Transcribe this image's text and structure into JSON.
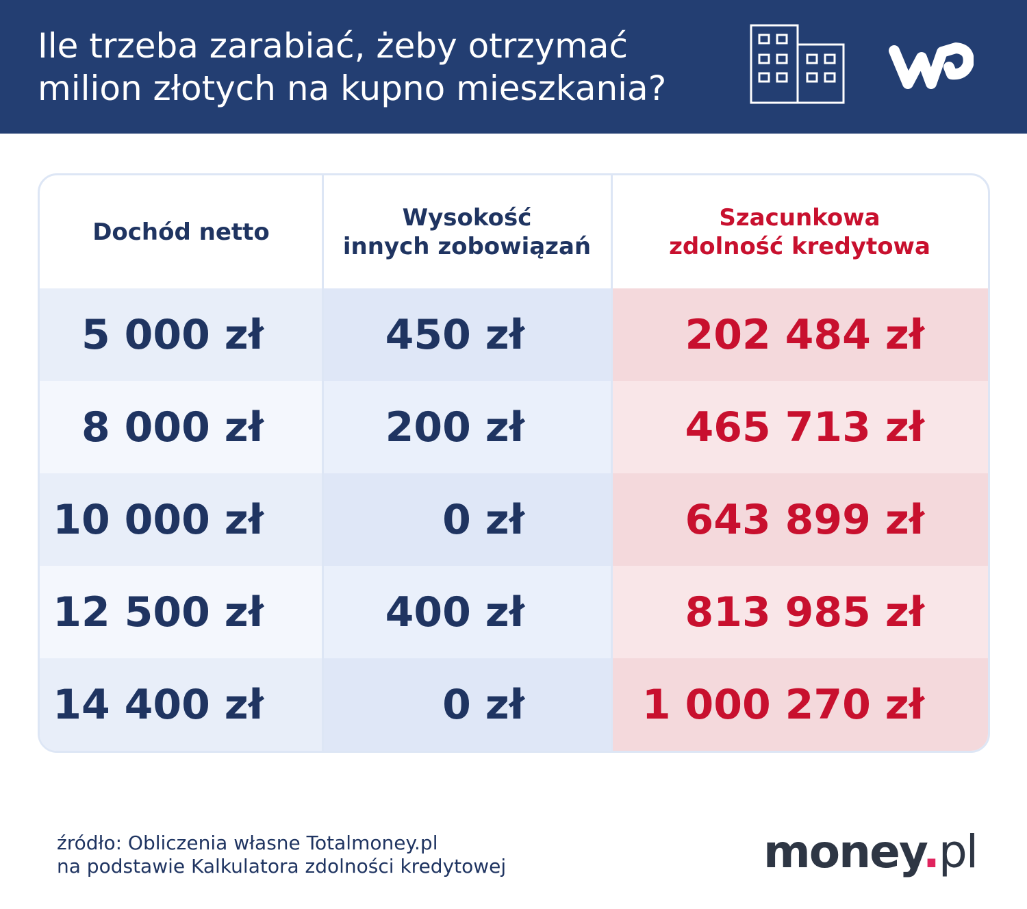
{
  "header": {
    "title_lines": [
      "Ile trzeba zarabiać, żeby otrzymać",
      "milion złotych na kupno mieszkania?"
    ]
  },
  "table": {
    "columns": [
      [
        "Dochód netto"
      ],
      [
        "Wysokość",
        "innych zobowiązań"
      ],
      [
        "Szacunkowa",
        "zdolność kredytowa"
      ]
    ],
    "rows": [
      [
        "5 000 zł",
        "450 zł",
        "202 484 zł"
      ],
      [
        "8 000 zł",
        "200 zł",
        "465 713 zł"
      ],
      [
        "10 000 zł",
        "0 zł",
        "643 899 zł"
      ],
      [
        "12 500 zł",
        "400 zł",
        "813 985 zł"
      ],
      [
        "14 400 zł",
        "0 zł",
        "1 000 270 zł"
      ]
    ]
  },
  "footer": {
    "source_lines": [
      "źródło: Obliczenia własne Totalmoney.pl",
      "na podstawie Kalkulatora zdolności kredytowej"
    ],
    "logo_parts": [
      "money",
      ".",
      "pl"
    ]
  }
}
